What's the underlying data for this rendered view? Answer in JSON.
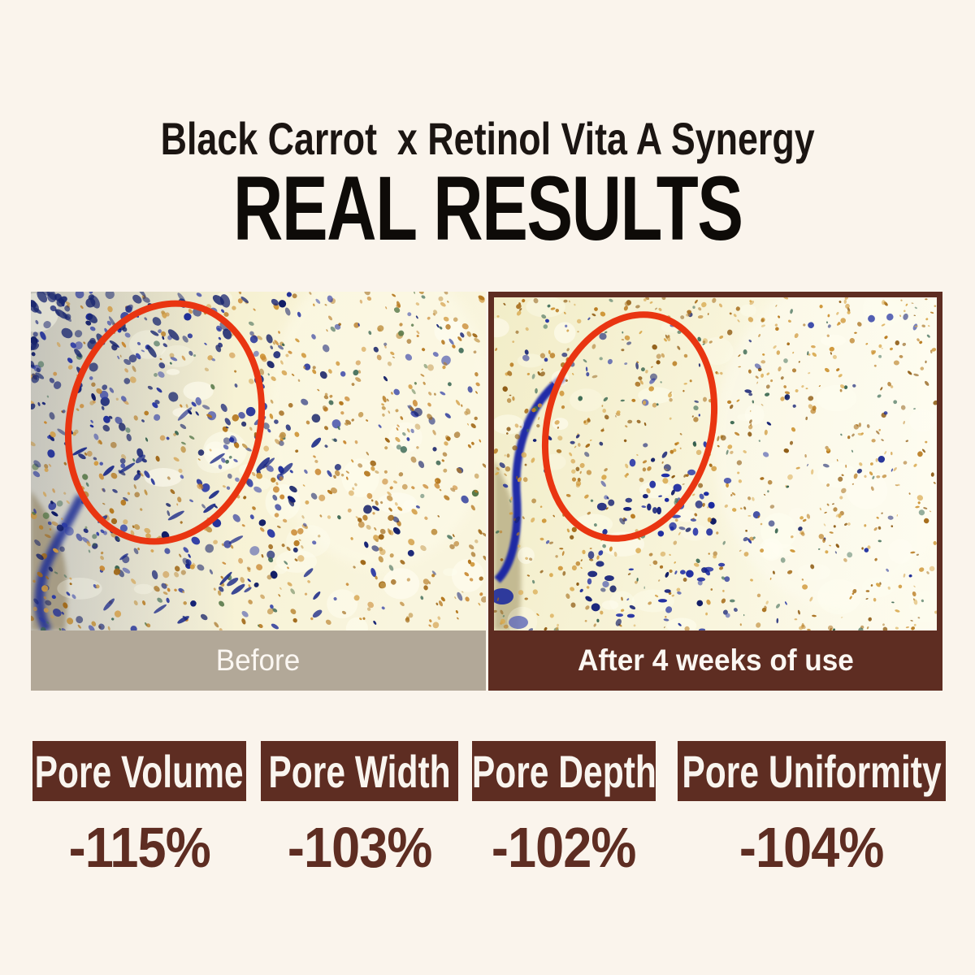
{
  "header": {
    "subtitle": "Black Carrot  x Retinol Vita A Synergy",
    "title": "REAL RESULTS"
  },
  "comparison": {
    "before_label": "Before",
    "after_label": "After 4 weeks of use"
  },
  "stats": [
    {
      "label": "Pore Volume",
      "value": "-115%"
    },
    {
      "label": "Pore Width",
      "value": "-103%"
    },
    {
      "label": "Pore Depth",
      "value": "-102%"
    },
    {
      "label": "Pore Uniformity",
      "value": "-104%"
    }
  ],
  "colors": {
    "background": "#faf4ec",
    "brown_accent": "#5e2d22",
    "taupe_bar": "#b2a898",
    "annotation_red": "#e93511",
    "title_text": "#0e0b08",
    "stat_value_text": "#5e2d22"
  }
}
